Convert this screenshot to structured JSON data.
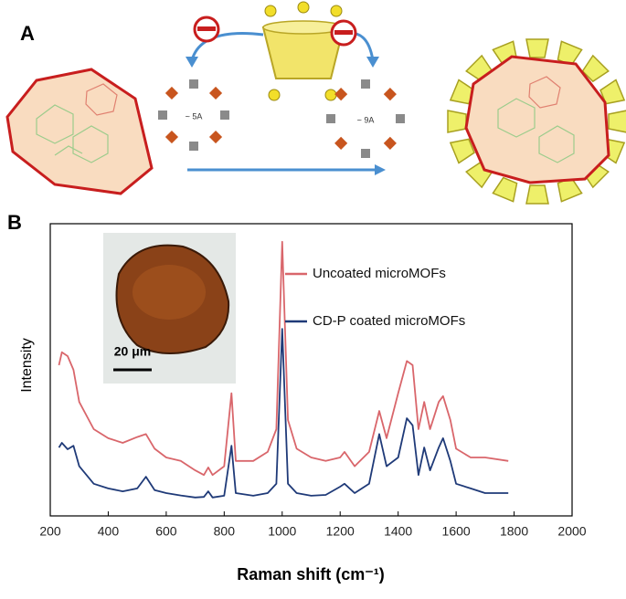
{
  "panel_labels": [
    "A",
    "B"
  ],
  "diagram": {
    "pore_labels": [
      "~ 5A",
      "~ 9A"
    ]
  },
  "inset": {
    "scale_bar": "20 μm"
  },
  "chart_data": {
    "type": "line",
    "x_label": "Raman shift (cm⁻¹)",
    "y_label": "Intensity",
    "x": [
      230,
      240,
      260,
      280,
      300,
      350,
      400,
      450,
      500,
      530,
      560,
      600,
      650,
      700,
      730,
      745,
      760,
      800,
      825,
      840,
      900,
      950,
      980,
      1000,
      1020,
      1050,
      1100,
      1150,
      1200,
      1215,
      1250,
      1300,
      1335,
      1360,
      1400,
      1430,
      1450,
      1470,
      1490,
      1510,
      1540,
      1555,
      1580,
      1600,
      1650,
      1700,
      1780
    ],
    "series": [
      {
        "name": "Uncoated microMOFs",
        "color": "#d9666b",
        "values": [
          51.6,
          56,
          54.7,
          50,
          39,
          29.7,
          26.6,
          25,
          27,
          28,
          23,
          20,
          18.8,
          15.6,
          14,
          16.6,
          14,
          17,
          42,
          18.8,
          18.8,
          21.9,
          29.7,
          93.8,
          32.8,
          23,
          20,
          18.8,
          20,
          21.9,
          17,
          21.9,
          35.9,
          26.6,
          42,
          53,
          51.6,
          29.7,
          39,
          29.7,
          39,
          41,
          32.8,
          23,
          20,
          20,
          18.8
        ]
      },
      {
        "name": "CD-P  coated microMOFs",
        "color": "#1f3a78",
        "values": [
          23.4,
          25,
          22.8,
          24,
          17,
          11,
          9.4,
          8.4,
          9.4,
          13.4,
          8.8,
          7.8,
          7,
          6.3,
          6.5,
          8.4,
          6.3,
          6.9,
          24,
          7.8,
          6.9,
          7.8,
          11,
          64,
          11,
          7.8,
          6.9,
          7.2,
          10,
          11,
          7.8,
          11,
          28,
          17,
          20,
          33.4,
          31,
          14,
          23.4,
          15.6,
          23.4,
          26.6,
          18.8,
          11,
          9.4,
          7.8,
          7.8
        ]
      }
    ],
    "xlim": [
      200,
      2000
    ],
    "xticks": [
      200,
      400,
      600,
      800,
      1000,
      1200,
      1400,
      1600,
      1800,
      2000
    ],
    "ylim": [
      0,
      100
    ],
    "legend": "upper center"
  }
}
